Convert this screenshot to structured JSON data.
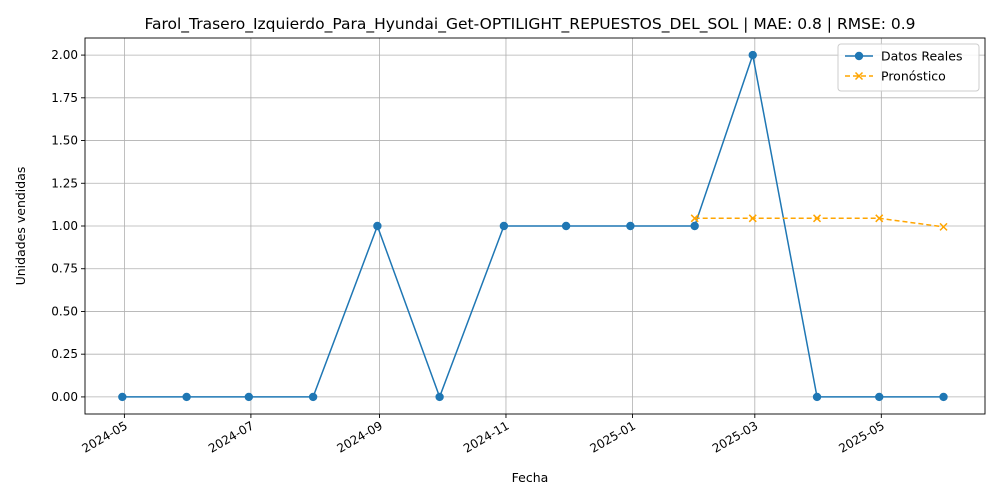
{
  "chart_data": {
    "type": "line",
    "title": "Farol_Trasero_Izquierdo_Para_Hyundai_Get-OPTILIGHT_REPUESTOS_DEL_SOL | MAE: 0.8 | RMSE: 0.9",
    "xlabel": "Fecha",
    "ylabel": "Unidades vendidas",
    "grid": true,
    "legend_position": "top-right",
    "ylim": [
      -0.1,
      2.1
    ],
    "xlim": [
      "2024-04-12",
      "2025-06-20"
    ],
    "y_ticks": [
      0.0,
      0.25,
      0.5,
      0.75,
      1.0,
      1.25,
      1.5,
      1.75,
      2.0
    ],
    "y_tick_labels": [
      "0.00",
      "0.25",
      "0.50",
      "0.75",
      "1.00",
      "1.25",
      "1.50",
      "1.75",
      "2.00"
    ],
    "x_ticks": [
      "2024-05-01",
      "2024-07-01",
      "2024-09-01",
      "2024-11-01",
      "2025-01-01",
      "2025-03-01",
      "2025-05-01"
    ],
    "x_tick_labels": [
      "2024-05",
      "2024-07",
      "2024-09",
      "2024-11",
      "2025-01",
      "2025-03",
      "2025-05"
    ],
    "series": [
      {
        "name": "Datos Reales",
        "color": "#1f77b4",
        "marker": "circle",
        "line_style": "solid",
        "x": [
          "2024-04-30",
          "2024-05-31",
          "2024-06-30",
          "2024-07-31",
          "2024-08-31",
          "2024-09-30",
          "2024-10-31",
          "2024-11-30",
          "2024-12-31",
          "2025-01-31",
          "2025-02-28",
          "2025-03-31",
          "2025-04-30",
          "2025-05-31"
        ],
        "values": [
          0,
          0,
          0,
          0,
          1,
          0,
          1,
          1,
          1,
          1,
          2,
          0,
          0,
          0
        ]
      },
      {
        "name": "Pronóstico",
        "color": "#ffa500",
        "marker": "x",
        "line_style": "dashed",
        "x": [
          "2025-01-31",
          "2025-02-28",
          "2025-03-31",
          "2025-04-30",
          "2025-05-31"
        ],
        "values": [
          1.045,
          1.045,
          1.045,
          1.045,
          0.995
        ]
      }
    ]
  }
}
